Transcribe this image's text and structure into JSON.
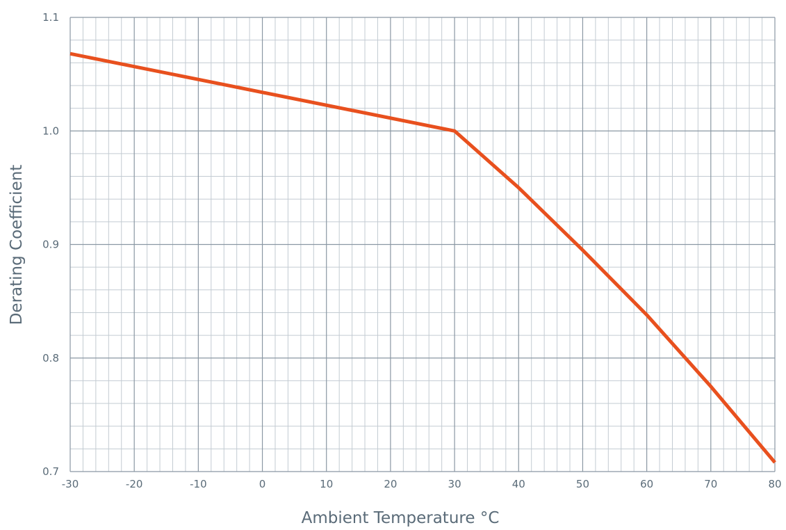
{
  "chart_data": {
    "type": "line",
    "title": "",
    "xlabel": "Ambient Temperature °C",
    "ylabel": "Derating Coefficient",
    "xlim": [
      -30,
      80
    ],
    "ylim": [
      0.7,
      1.1
    ],
    "x_ticks": [
      -30,
      -20,
      -10,
      0,
      10,
      20,
      30,
      40,
      50,
      60,
      70,
      80
    ],
    "x_tick_labels": [
      "-30",
      "-20",
      "-10",
      "0",
      "10",
      "20",
      "30",
      "40",
      "50",
      "60",
      "70",
      "80"
    ],
    "y_ticks": [
      0.7,
      0.8,
      0.9,
      1.0,
      1.1
    ],
    "y_tick_labels": [
      "0.7",
      "0.8",
      "0.9",
      "1.0",
      "1.1"
    ],
    "grid": true,
    "legend": false,
    "colors": {
      "line": "#e8501e",
      "grid_major": "#8a97a3",
      "grid_minor": "#c3cbd2",
      "text": "#5a6b78"
    },
    "series": [
      {
        "x": [
          -30,
          30,
          40,
          50,
          60,
          70,
          80
        ],
        "y": [
          1.068,
          1.0,
          0.95,
          0.895,
          0.838,
          0.775,
          0.708
        ]
      }
    ]
  }
}
